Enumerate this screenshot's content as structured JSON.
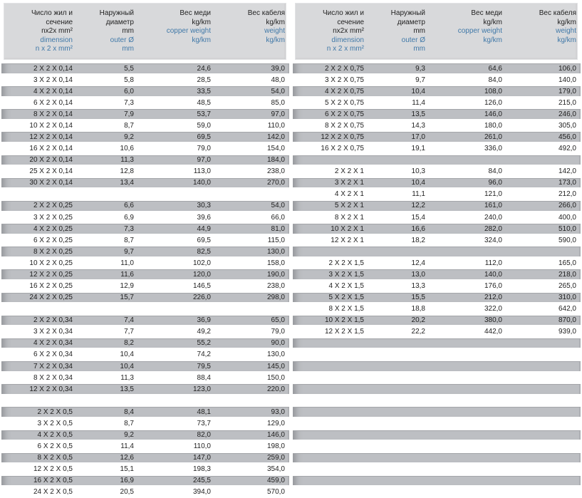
{
  "colors": {
    "accent_blue": "#4179a8",
    "row_gray": "#bdbfc3",
    "header_gray": "#d8d9db"
  },
  "header": {
    "columns": [
      {
        "black": [
          "Число жил и",
          "сечение",
          "nx2x mm²"
        ],
        "blue": [
          "dimension",
          "n x 2 x mm²"
        ]
      },
      {
        "black": [
          "Наружный",
          "диаметр",
          "mm"
        ],
        "blue": [
          "outer Ø",
          "mm"
        ]
      },
      {
        "black": [
          "Вес меди",
          "kg/km"
        ],
        "blue": [
          "copper weight",
          "kg/km"
        ]
      },
      {
        "black": [
          "Вес кабеля",
          "kg/km"
        ],
        "blue": [
          "weight",
          "kg/km"
        ]
      }
    ]
  },
  "tables": [
    {
      "name": "left-table",
      "groups": [
        {
          "section": "0,14",
          "rows": [
            [
              "2 X 2 X 0,14",
              "5,5",
              "24,6",
              "39,0"
            ],
            [
              "3 X 2 X 0,14",
              "5,8",
              "28,5",
              "48,0"
            ],
            [
              "4 X 2 X 0,14",
              "6,0",
              "33,5",
              "54,0"
            ],
            [
              "6 X 2 X 0,14",
              "7,3",
              "48,5",
              "85,0"
            ],
            [
              "8 X 2 X 0,14",
              "7,9",
              "53,7",
              "97,0"
            ],
            [
              "10 X 2 X 0,14",
              "8,7",
              "59,0",
              "110,0"
            ],
            [
              "12 X 2 X 0,14",
              "9,2",
              "69,5",
              "142,0"
            ],
            [
              "16 X 2 X 0,14",
              "10,6",
              "79,0",
              "154,0"
            ],
            [
              "20 X 2 X 0,14",
              "11,3",
              "97,0",
              "184,0"
            ],
            [
              "25 X 2 X 0,14",
              "12,8",
              "113,0",
              "238,0"
            ],
            [
              "30 X 2 X 0,14",
              "13,4",
              "140,0",
              "270,0"
            ]
          ]
        },
        {
          "section": "0,25",
          "rows": [
            [
              "2 X 2 X 0,25",
              "6,6",
              "30,3",
              "54,0"
            ],
            [
              "3 X 2 X 0,25",
              "6,9",
              "39,6",
              "66,0"
            ],
            [
              "4 X 2 X 0,25",
              "7,3",
              "44,9",
              "81,0"
            ],
            [
              "6 X 2 X 0,25",
              "8,7",
              "69,5",
              "115,0"
            ],
            [
              "8 X 2 X 0,25",
              "9,7",
              "82,5",
              "130,0"
            ],
            [
              "10 X 2 X 0,25",
              "11,0",
              "102,0",
              "158,0"
            ],
            [
              "12 X 2 X 0,25",
              "11,6",
              "120,0",
              "190,0"
            ],
            [
              "16 X 2 X 0,25",
              "12,9",
              "146,5",
              "238,0"
            ],
            [
              "24 X 2 X 0,25",
              "15,7",
              "226,0",
              "298,0"
            ]
          ]
        },
        {
          "section": "0,34",
          "rows": [
            [
              "2 X 2 X 0,34",
              "7,4",
              "36,9",
              "65,0"
            ],
            [
              "3 X 2 X 0,34",
              "7,7",
              "49,2",
              "79,0"
            ],
            [
              "4 X 2 X 0,34",
              "8,2",
              "55,2",
              "90,0"
            ],
            [
              "6 X 2 X 0,34",
              "10,4",
              "74,2",
              "130,0"
            ],
            [
              "7 X 2 X 0,34",
              "10,4",
              "79,5",
              "145,0"
            ],
            [
              "8 X 2 X 0,34",
              "11,3",
              "88,4",
              "150,0"
            ],
            [
              "12 X 2 X 0,34",
              "13,5",
              "123,0",
              "220,0"
            ]
          ]
        },
        {
          "section": "0,5",
          "rows": [
            [
              "2 X 2 X 0,5",
              "8,4",
              "48,1",
              "93,0"
            ],
            [
              "3 X 2 X 0,5",
              "8,7",
              "73,7",
              "129,0"
            ],
            [
              "4 X 2 X 0,5",
              "9,2",
              "82,0",
              "146,0"
            ],
            [
              "6 X 2 X 0,5",
              "11,4",
              "110,0",
              "198,0"
            ],
            [
              "8 X 2 X 0,5",
              "12,6",
              "147,0",
              "259,0"
            ],
            [
              "12 X 2 X 0,5",
              "15,1",
              "198,3",
              "354,0"
            ],
            [
              "16 X 2 X 0,5",
              "16,9",
              "245,5",
              "459,0"
            ],
            [
              "24 X 2 X 0,5",
              "20,5",
              "394,0",
              "570,0"
            ]
          ]
        }
      ]
    },
    {
      "name": "right-table",
      "groups": [
        {
          "section": "0,75",
          "rows": [
            [
              "2 X 2 X 0,75",
              "9,3",
              "64,6",
              "106,0"
            ],
            [
              "3 X 2 X 0,75",
              "9,7",
              "84,0",
              "140,0"
            ],
            [
              "4 X 2 X 0,75",
              "10,4",
              "108,0",
              "179,0"
            ],
            [
              "5 X 2 X 0,75",
              "11,4",
              "126,0",
              "215,0"
            ],
            [
              "6 X 2 X 0,75",
              "13,5",
              "146,0",
              "246,0"
            ],
            [
              "8 X 2 X 0,75",
              "14,3",
              "180,0",
              "305,0"
            ],
            [
              "12 X 2 X 0,75",
              "17,0",
              "261,0",
              "456,0"
            ],
            [
              "16 X 2 X 0,75",
              "19,1",
              "336,0",
              "492,0"
            ]
          ]
        },
        {
          "section": "1",
          "rows": [
            [
              "2 X 2 X 1",
              "10,3",
              "84,0",
              "142,0"
            ],
            [
              "3 X 2 X 1",
              "10,4",
              "96,0",
              "173,0"
            ],
            [
              "4 X 2 X 1",
              "11,1",
              "121,0",
              "212,0"
            ],
            [
              "5 X 2 X 1",
              "12,2",
              "161,0",
              "266,0"
            ],
            [
              "8 X 2 X 1",
              "15,4",
              "240,0",
              "400,0"
            ],
            [
              "10 X 2 X 1",
              "16,6",
              "282,0",
              "510,0"
            ],
            [
              "12 X 2 X 1",
              "18,2",
              "324,0",
              "590,0"
            ]
          ]
        },
        {
          "section": "1,5",
          "rows": [
            [
              "2 X 2 X 1,5",
              "12,4",
              "112,0",
              "165,0"
            ],
            [
              "3 X 2 X 1,5",
              "13,0",
              "140,0",
              "218,0"
            ],
            [
              "4 X 2 X 1,5",
              "13,3",
              "176,0",
              "265,0"
            ],
            [
              "5 X 2 X 1,5",
              "15,5",
              "212,0",
              "310,0"
            ],
            [
              "8 X 2 X 1,5",
              "18,8",
              "322,0",
              "642,0"
            ],
            [
              "10 X 2 X 1,5",
              "20,2",
              "380,0",
              "870,0"
            ],
            [
              "12 X 2 X 1,5",
              "22,2",
              "442,0",
              "939,0"
            ]
          ]
        }
      ]
    }
  ]
}
